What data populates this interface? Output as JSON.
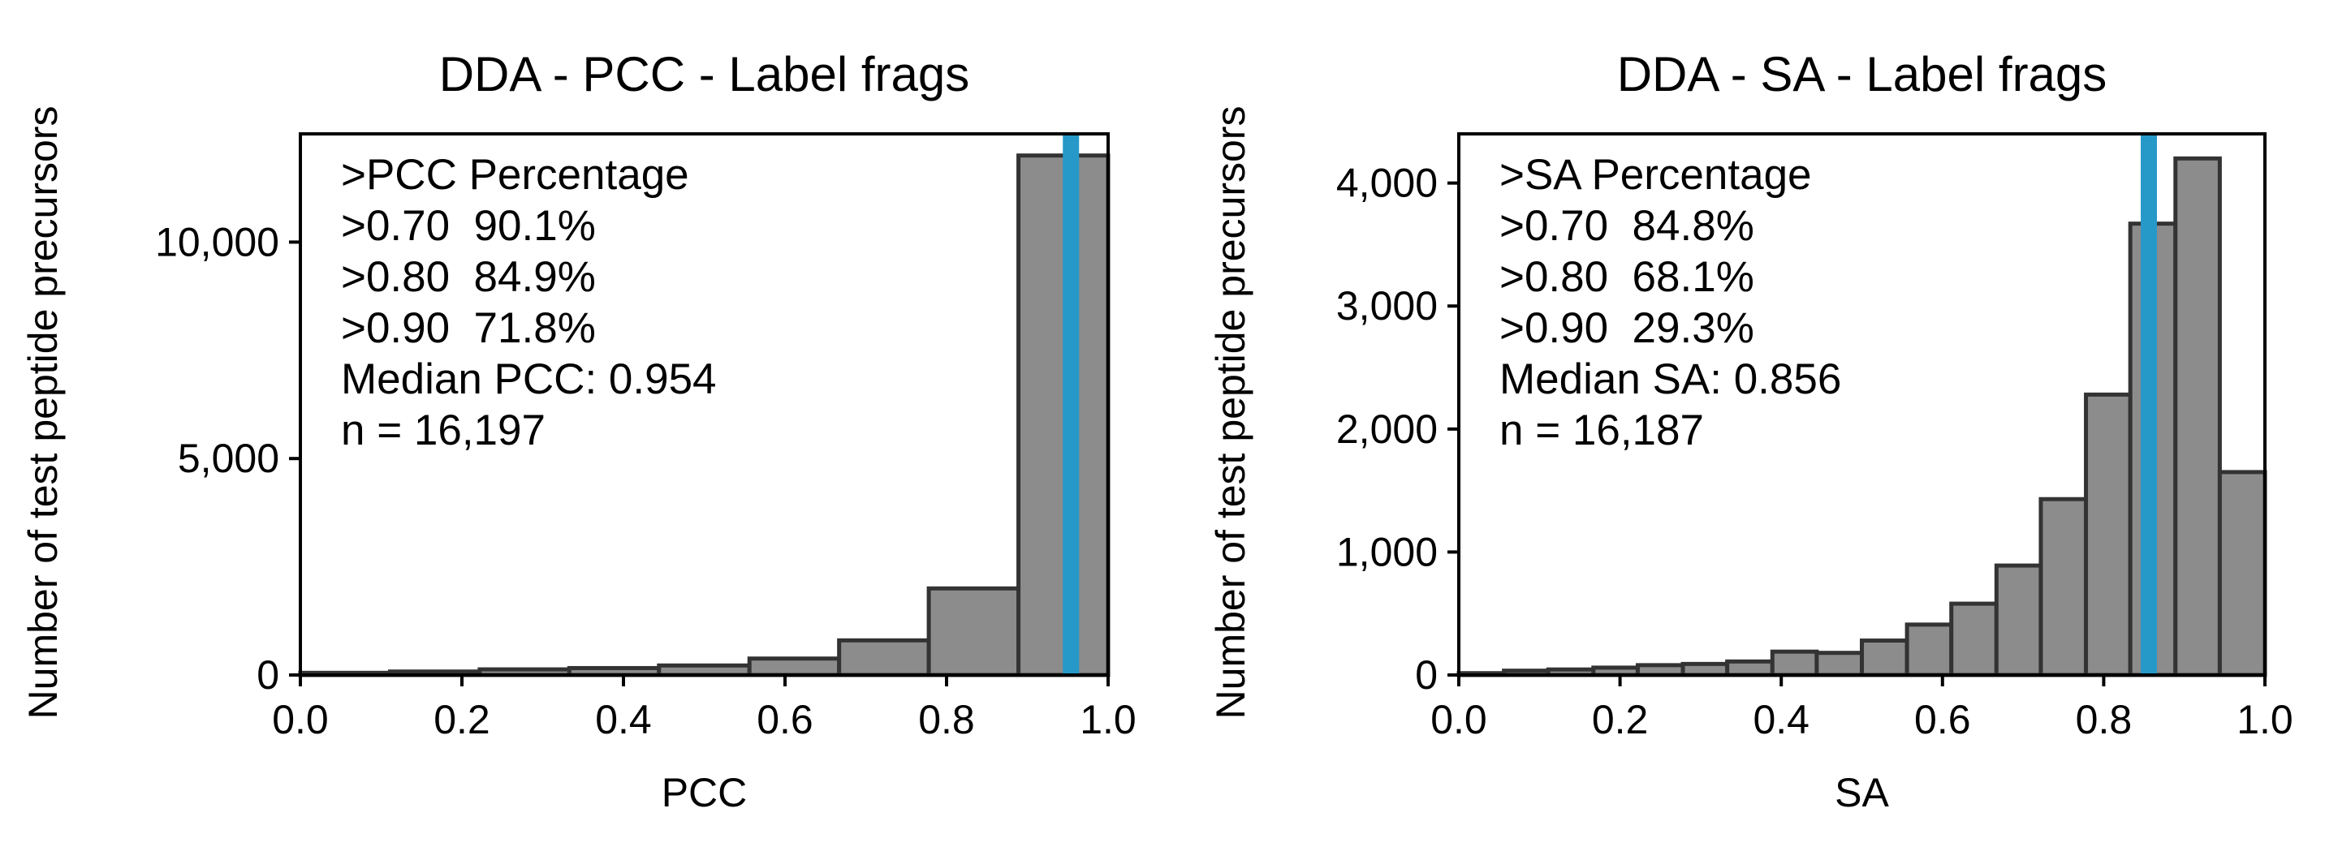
{
  "colors": {
    "bar_fill": "#8c8c8c",
    "bar_edge": "#333333",
    "median_line": "#2699c9",
    "axis": "#000000"
  },
  "chart_data": [
    {
      "type": "bar",
      "title": "DDA - PCC - Label frags",
      "xlabel": "PCC",
      "ylabel": "Number of test peptide precursors",
      "xlim": [
        0,
        1
      ],
      "ylim": [
        0,
        12500
      ],
      "xticks": [
        "0.0",
        "0.2",
        "0.4",
        "0.6",
        "0.8",
        "1.0"
      ],
      "yticks": [
        {
          "value": 0,
          "label": "0"
        },
        {
          "value": 5000,
          "label": "5,000"
        },
        {
          "value": 10000,
          "label": "10,000"
        }
      ],
      "bin_edges": [
        0.0,
        0.111,
        0.222,
        0.333,
        0.444,
        0.556,
        0.667,
        0.778,
        0.889,
        1.0
      ],
      "values": [
        50,
        80,
        130,
        160,
        220,
        380,
        800,
        2000,
        12000
      ],
      "median": 0.954,
      "annotation": [
        ">PCC Percentage",
        ">0.70  90.1%",
        ">0.80  84.9%",
        ">0.90  71.8%",
        "Median PCC: 0.954",
        "n = 16,197"
      ]
    },
    {
      "type": "bar",
      "title": "DDA - SA - Label frags",
      "xlabel": "SA",
      "ylabel": "Number of test peptide precursors",
      "xlim": [
        0,
        1
      ],
      "ylim": [
        0,
        4400
      ],
      "xticks": [
        "0.0",
        "0.2",
        "0.4",
        "0.6",
        "0.8",
        "1.0"
      ],
      "yticks": [
        {
          "value": 0,
          "label": "0"
        },
        {
          "value": 1000,
          "label": "1,000"
        },
        {
          "value": 2000,
          "label": "2,000"
        },
        {
          "value": 3000,
          "label": "3,000"
        },
        {
          "value": 4000,
          "label": "4,000"
        }
      ],
      "bin_edges": [
        0.0,
        0.056,
        0.111,
        0.167,
        0.222,
        0.278,
        0.333,
        0.389,
        0.444,
        0.5,
        0.556,
        0.611,
        0.667,
        0.722,
        0.778,
        0.833,
        0.889,
        0.944,
        1.0
      ],
      "values": [
        15,
        35,
        45,
        60,
        80,
        90,
        110,
        190,
        180,
        280,
        410,
        580,
        890,
        1430,
        2280,
        3670,
        4200,
        1650
      ],
      "median": 0.856,
      "annotation": [
        ">SA Percentage",
        ">0.70  84.8%",
        ">0.80  68.1%",
        ">0.90  29.3%",
        "Median SA: 0.856",
        "n = 16,187"
      ]
    }
  ]
}
